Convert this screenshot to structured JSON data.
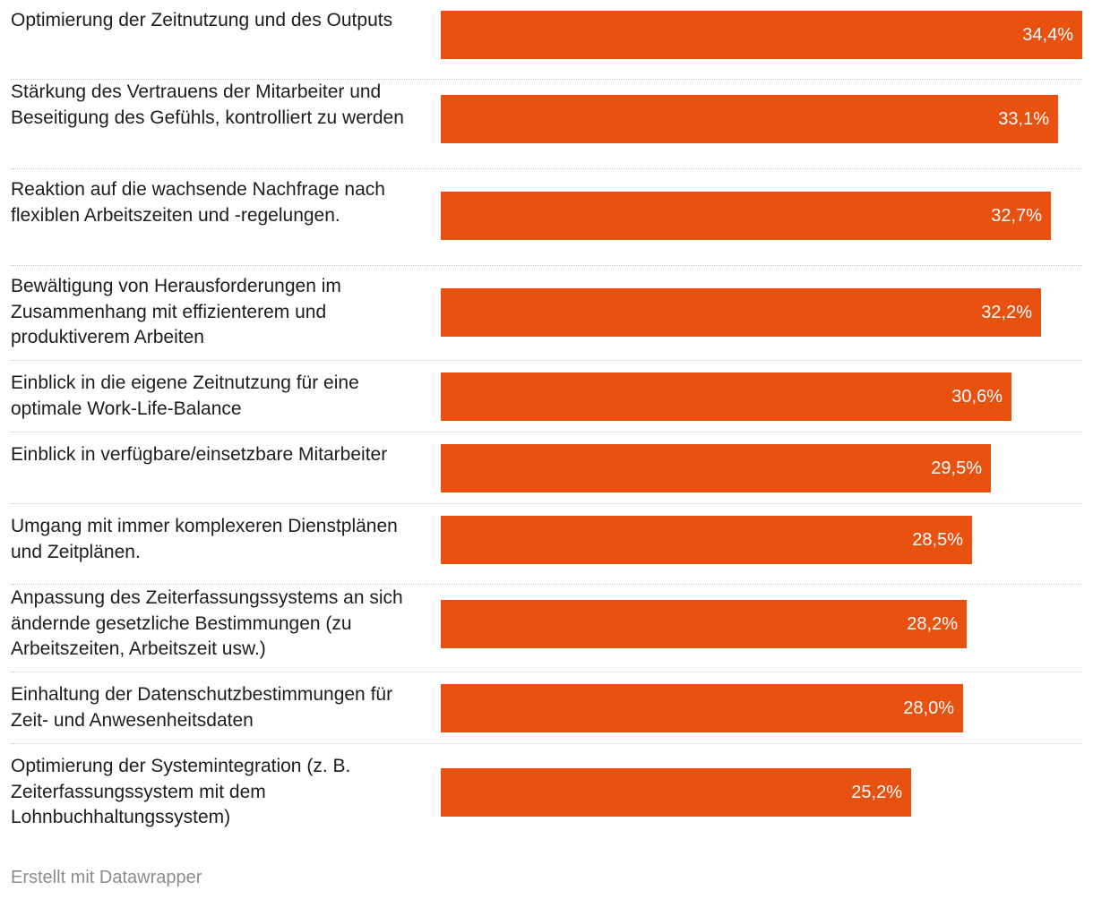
{
  "chart_data": {
    "type": "bar",
    "orientation": "horizontal",
    "categories": [
      "Optimierung der Zeitnutzung und des Outputs",
      "Stärkung des Vertrauens der Mitarbeiter und Beseitigung des Gefühls, kontrolliert zu werden",
      "Reaktion auf die wachsende Nachfrage nach flexiblen Arbeitszeiten und -regelungen.",
      "Bewältigung von Herausforderungen im Zusammenhang mit effizienterem und produktiverem Arbeiten",
      "Einblick in die eigene Zeitnutzung für eine optimale Work-Life-Balance",
      "Einblick in verfügbare/einsetzbare Mitarbeiter",
      "Umgang mit immer komplexeren Dienstplänen und Zeitplänen.",
      "Anpassung des Zeiterfassungssystems an sich ändernde gesetzliche Bestimmungen (zu Arbeitszeiten, Arbeitszeit usw.)",
      "Einhaltung der Datenschutzbestimmungen für Zeit- und Anwesenheitsdaten",
      "Optimierung der Systemintegration (z. B. Zeiterfassungssystem mit dem Lohnbuchhaltungssystem)"
    ],
    "values": [
      34.4,
      33.1,
      32.7,
      32.2,
      30.6,
      29.5,
      28.5,
      28.2,
      28.0,
      25.2
    ],
    "value_labels": [
      "34,4%",
      "33,1%",
      "32,7%",
      "32,2%",
      "30,6%",
      "29,5%",
      "28,5%",
      "28,2%",
      "28,0%",
      "25,2%"
    ],
    "bar_color": "#e8510f",
    "grid": false
  },
  "footer": {
    "credit": "Erstellt mit Datawrapper"
  }
}
